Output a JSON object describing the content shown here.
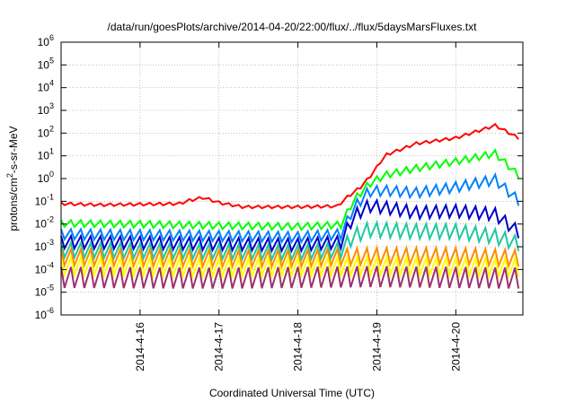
{
  "chart_data": {
    "type": "line",
    "title": "/data/run/goesPlots/archive/2014-04-20/22:00/flux/../flux/5daysMarsFluxes.txt",
    "xlabel": "Coordinated Universal Time (UTC)",
    "ylabel": "protons/cm²-s-sr-MeV",
    "ylabel_parts": {
      "pre": "protons/cm",
      "sup": "2",
      "post": "-s-sr-MeV"
    },
    "y_scale": "log",
    "ylim": [
      1e-06,
      1000000.0
    ],
    "y_ticks": [
      {
        "value": 1e-06,
        "base": "10",
        "exp": "-6"
      },
      {
        "value": 1e-05,
        "base": "10",
        "exp": "-5"
      },
      {
        "value": 0.0001,
        "base": "10",
        "exp": "-4"
      },
      {
        "value": 0.001,
        "base": "10",
        "exp": "-3"
      },
      {
        "value": 0.01,
        "base": "10",
        "exp": "-2"
      },
      {
        "value": 0.1,
        "base": "10",
        "exp": "-1"
      },
      {
        "value": 1.0,
        "base": "10",
        "exp": "0"
      },
      {
        "value": 10.0,
        "base": "10",
        "exp": "1"
      },
      {
        "value": 100.0,
        "base": "10",
        "exp": "2"
      },
      {
        "value": 1000.0,
        "base": "10",
        "exp": "3"
      },
      {
        "value": 10000.0,
        "base": "10",
        "exp": "4"
      },
      {
        "value": 100000.0,
        "base": "10",
        "exp": "5"
      },
      {
        "value": 1000000.0,
        "base": "10",
        "exp": "6"
      }
    ],
    "xlim": [
      0,
      5.85
    ],
    "x_ticks": [
      {
        "value": 1,
        "label": "2014-4-16"
      },
      {
        "value": 2,
        "label": "2014-4-17"
      },
      {
        "value": 3,
        "label": "2014-4-18"
      },
      {
        "value": 4,
        "label": "2014-4-19"
      },
      {
        "value": 5,
        "label": "2014-4-20"
      }
    ],
    "grid": true,
    "oscillation_period_days": 0.125,
    "series": [
      {
        "color": "#ff0000",
        "drop": 0.12,
        "knots": [
          [
            0,
            0.09
          ],
          [
            0.5,
            0.08
          ],
          [
            1,
            0.085
          ],
          [
            1.5,
            0.09
          ],
          [
            1.6,
            0.12
          ],
          [
            1.8,
            0.17
          ],
          [
            2,
            0.1
          ],
          [
            2.3,
            0.065
          ],
          [
            3,
            0.065
          ],
          [
            3.5,
            0.07
          ],
          [
            3.6,
            0.15
          ],
          [
            3.8,
            0.5
          ],
          [
            3.95,
            2
          ],
          [
            4.1,
            12
          ],
          [
            4.5,
            40
          ],
          [
            5,
            70
          ],
          [
            5.5,
            250
          ],
          [
            5.85,
            55
          ]
        ]
      },
      {
        "color": "#00ff00",
        "drop": 0.3,
        "knots": [
          [
            0,
            0.015
          ],
          [
            1,
            0.014
          ],
          [
            2,
            0.012
          ],
          [
            3,
            0.011
          ],
          [
            3.55,
            0.013
          ],
          [
            3.7,
            0.15
          ],
          [
            3.9,
            0.8
          ],
          [
            4.1,
            2
          ],
          [
            4.5,
            4
          ],
          [
            5,
            8
          ],
          [
            5.5,
            18
          ],
          [
            5.85,
            1.3
          ]
        ]
      },
      {
        "color": "#0080ff",
        "drop": 0.45,
        "knots": [
          [
            0,
            0.006
          ],
          [
            1,
            0.0055
          ],
          [
            2,
            0.005
          ],
          [
            3,
            0.0045
          ],
          [
            3.55,
            0.006
          ],
          [
            3.7,
            0.08
          ],
          [
            3.9,
            0.45
          ],
          [
            4.1,
            0.5
          ],
          [
            4.5,
            0.4
          ],
          [
            5,
            0.7
          ],
          [
            5.5,
            1.5
          ],
          [
            5.85,
            0.12
          ]
        ]
      },
      {
        "color": "#0000c8",
        "drop": 0.55,
        "knots": [
          [
            0,
            0.003
          ],
          [
            1,
            0.0028
          ],
          [
            2,
            0.0025
          ],
          [
            3,
            0.0023
          ],
          [
            3.55,
            0.003
          ],
          [
            3.7,
            0.04
          ],
          [
            3.9,
            0.12
          ],
          [
            4.1,
            0.1
          ],
          [
            4.5,
            0.06
          ],
          [
            5,
            0.07
          ],
          [
            5.5,
            0.05
          ],
          [
            5.85,
            0.006
          ]
        ]
      },
      {
        "color": "#20c8a0",
        "drop": 0.65,
        "knots": [
          [
            0,
            0.0015
          ],
          [
            1,
            0.0014
          ],
          [
            2,
            0.0013
          ],
          [
            3,
            0.0012
          ],
          [
            3.55,
            0.0015
          ],
          [
            3.7,
            0.006
          ],
          [
            3.9,
            0.012
          ],
          [
            4.5,
            0.01
          ],
          [
            5,
            0.01
          ],
          [
            5.5,
            0.006
          ],
          [
            5.85,
            0.0025
          ]
        ]
      },
      {
        "color": "#ff8c00",
        "drop": 0.72,
        "knots": [
          [
            0,
            0.0008
          ],
          [
            2,
            0.0007
          ],
          [
            3,
            0.0007
          ],
          [
            4,
            0.0009
          ],
          [
            5,
            0.0009
          ],
          [
            5.85,
            0.0007
          ]
        ]
      },
      {
        "color": "#ffff00",
        "drop": 0.78,
        "knots": [
          [
            0,
            0.00035
          ],
          [
            2,
            0.0003
          ],
          [
            4,
            0.00035
          ],
          [
            5.85,
            0.0003
          ]
        ]
      },
      {
        "color": "#a0306e",
        "drop": 0.92,
        "knots": [
          [
            0,
            0.00013
          ],
          [
            2,
            0.00012
          ],
          [
            4,
            0.00014
          ],
          [
            5.85,
            0.00012
          ]
        ]
      }
    ]
  }
}
